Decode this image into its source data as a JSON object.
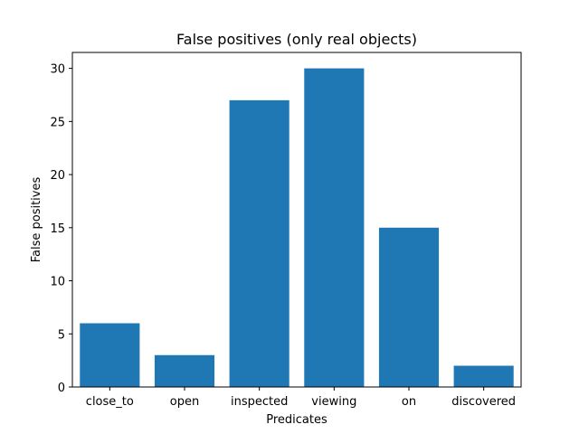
{
  "chart_data": {
    "type": "bar",
    "title": "False positives (only real objects)",
    "xlabel": "Predicates",
    "ylabel": "False positives",
    "categories": [
      "close_to",
      "open",
      "inspected",
      "viewing",
      "on",
      "discovered"
    ],
    "values": [
      6,
      3,
      27,
      30,
      15,
      2
    ],
    "ylim": [
      0,
      31.5
    ],
    "yticks": [
      0,
      5,
      10,
      15,
      20,
      25,
      30
    ],
    "bar_color": "#1f77b4",
    "grid": false,
    "legend": "none"
  }
}
